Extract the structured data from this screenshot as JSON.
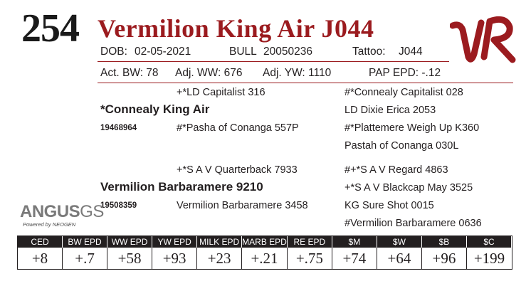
{
  "lot_number": "254",
  "animal_name": "Vermilion King Air J044",
  "info_row": {
    "dob_label": "DOB:",
    "dob_value": "02-05-2021",
    "bull_label": "BULL",
    "reg_value": "20050236",
    "tattoo_label": "Tattoo:",
    "tattoo_value": "J044"
  },
  "performance_row": {
    "act_bw": "Act. BW: 78",
    "adj_ww": "Adj. WW: 676",
    "adj_yw": "Adj. YW: 1110",
    "pap_epd": "PAP EPD: -.12"
  },
  "pedigree": {
    "sire": {
      "name": "*Connealy King Air",
      "reg": "19468964",
      "sire": "+*LD Capitalist 316",
      "dam": "#*Pasha of Conanga 557P",
      "sire_sire": "#*Connealy Capitalist 028",
      "sire_dam": "LD Dixie Erica 2053",
      "dam_sire": "#*Plattemere Weigh Up K360",
      "dam_dam": "Pastah of Conanga 030L"
    },
    "dam": {
      "name": "Vermilion Barbaramere 9210",
      "reg": "19508359",
      "sire": "+*S A V Quarterback 7933",
      "dam": "Vermilion Barbaramere 3458",
      "sire_sire": "#+*S A V Regard 4863",
      "sire_dam": "+*S A V Blackcap May 3525",
      "dam_sire": "KG Sure Shot 0015",
      "dam_dam": "#Vermilion Barbaramere 0636"
    }
  },
  "logos": {
    "brand_mark": "VR",
    "angus_main": "ANGUS",
    "angus_suffix": "GS",
    "angus_sub": "Powered by NEOGEN"
  },
  "epd_table": {
    "headers": [
      "CED",
      "BW EPD",
      "WW EPD",
      "YW EPD",
      "MILK EPD",
      "MARB EPD",
      "RE EPD",
      "$M",
      "$W",
      "$B",
      "$C"
    ],
    "values": [
      "+8",
      "+.7",
      "+58",
      "+93",
      "+23",
      "+.21",
      "+.75",
      "+74",
      "+64",
      "+96",
      "+199"
    ]
  },
  "colors": {
    "accent": "#9b1b1f",
    "text": "#231f20",
    "table_header_bg": "#231f20"
  }
}
